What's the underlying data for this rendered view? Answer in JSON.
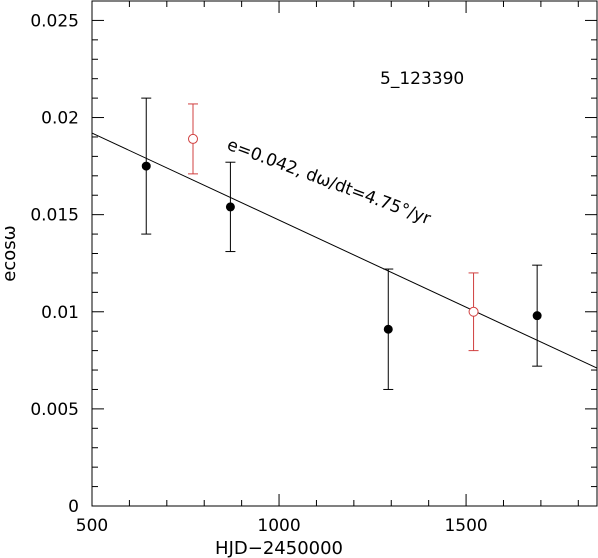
{
  "chart_data": {
    "type": "scatter",
    "annotation_id": "5_123390",
    "annotation_fit": "e=0.042, dω/dt=4.75°/yr",
    "xlabel": "HJD−2450000",
    "ylabel": "ecosω",
    "xlim": [
      500,
      1850
    ],
    "ylim": [
      0,
      0.026
    ],
    "x_ticks": [
      500,
      1000,
      1500
    ],
    "x_tick_labels": [
      "500",
      "1000",
      "1500"
    ],
    "y_ticks": [
      0,
      0.005,
      0.01,
      0.015,
      0.02,
      0.025
    ],
    "y_tick_labels": [
      "0",
      "0.005",
      "0.01",
      "0.015",
      "0.02",
      "0.025"
    ],
    "x_minor_step": 100,
    "y_minor_step": 0.001,
    "grid": false,
    "series": [
      {
        "marker": "filled-circle",
        "color": "#000000",
        "points": [
          {
            "x": 645,
            "y": 0.0175,
            "err_low": 0.014,
            "err_high": 0.021
          },
          {
            "x": 870,
            "y": 0.0154,
            "err_low": 0.0131,
            "err_high": 0.0177
          },
          {
            "x": 1292,
            "y": 0.0091,
            "err_low": 0.006,
            "err_high": 0.0122
          },
          {
            "x": 1690,
            "y": 0.0098,
            "err_low": 0.0072,
            "err_high": 0.0124
          }
        ]
      },
      {
        "marker": "open-circle",
        "color": "#d04040",
        "points": [
          {
            "x": 770,
            "y": 0.0189,
            "err_low": 0.0171,
            "err_high": 0.0207
          },
          {
            "x": 1520,
            "y": 0.01,
            "err_low": 0.008,
            "err_high": 0.012
          }
        ]
      }
    ],
    "fit_line": {
      "x": [
        500,
        1850
      ],
      "y": [
        0.0192,
        0.0071
      ],
      "color": "#000000"
    }
  }
}
